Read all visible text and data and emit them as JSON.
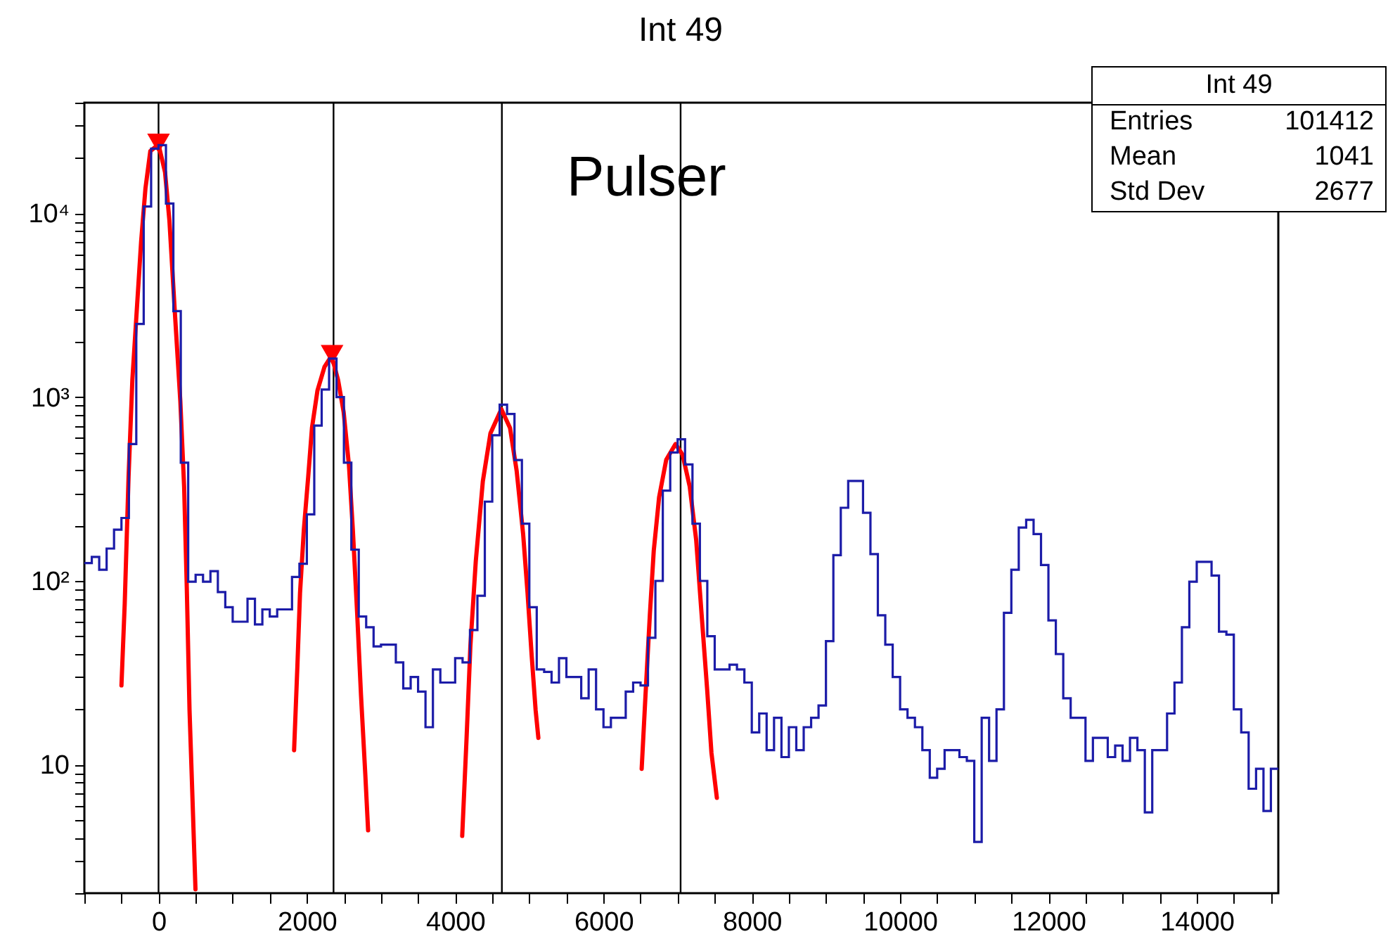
{
  "chart_data": {
    "type": "histogram",
    "title": "Int 49",
    "xlim": [
      -1000,
      15100
    ],
    "ylim": [
      2,
      40000
    ],
    "log": "y",
    "xticks": [
      {
        "value": -1000,
        "label": null
      },
      {
        "value": -500,
        "label": null
      },
      0,
      {
        "value": 500,
        "label": null
      },
      {
        "value": 1000,
        "label": null
      },
      {
        "value": 1500,
        "label": null
      },
      2000,
      {
        "value": 2500,
        "label": null
      },
      {
        "value": 3000,
        "label": null
      },
      {
        "value": 3500,
        "label": null
      },
      4000,
      {
        "value": 4500,
        "label": null
      },
      {
        "value": 5000,
        "label": null
      },
      {
        "value": 5500,
        "label": null
      },
      6000,
      {
        "value": 6500,
        "label": null
      },
      {
        "value": 7000,
        "label": null
      },
      {
        "value": 7500,
        "label": null
      },
      8000,
      {
        "value": 8500,
        "label": null
      },
      {
        "value": 9000,
        "label": null
      },
      {
        "value": 9500,
        "label": null
      },
      10000,
      {
        "value": 10500,
        "label": null
      },
      {
        "value": 11000,
        "label": null
      },
      {
        "value": 11500,
        "label": null
      },
      12000,
      {
        "value": 12500,
        "label": null
      },
      {
        "value": 13000,
        "label": null
      },
      {
        "value": 13500,
        "label": null
      },
      14000,
      {
        "value": 14500,
        "label": null
      },
      {
        "value": 15000,
        "label": null
      }
    ],
    "yticks": [
      {
        "value": 2,
        "label": null
      },
      {
        "value": 3,
        "label": null
      },
      {
        "value": 4,
        "label": null
      },
      {
        "value": 5,
        "label": null
      },
      {
        "value": 6,
        "label": null
      },
      {
        "value": 7,
        "label": null
      },
      {
        "value": 8,
        "label": null
      },
      {
        "value": 9,
        "label": null
      },
      10,
      {
        "value": 20,
        "label": null
      },
      {
        "value": 30,
        "label": null
      },
      {
        "value": 40,
        "label": null
      },
      {
        "value": 50,
        "label": null
      },
      {
        "value": 60,
        "label": null
      },
      {
        "value": 70,
        "label": null
      },
      {
        "value": 80,
        "label": null
      },
      {
        "value": 90,
        "label": null
      },
      {
        "value": 100,
        "label": "10²"
      },
      {
        "value": 200,
        "label": null
      },
      {
        "value": 300,
        "label": null
      },
      {
        "value": 400,
        "label": null
      },
      {
        "value": 500,
        "label": null
      },
      {
        "value": 600,
        "label": null
      },
      {
        "value": 700,
        "label": null
      },
      {
        "value": 800,
        "label": null
      },
      {
        "value": 900,
        "label": null
      },
      {
        "value": 1000,
        "label": "10³"
      },
      {
        "value": 2000,
        "label": null
      },
      {
        "value": 3000,
        "label": null
      },
      {
        "value": 4000,
        "label": null
      },
      {
        "value": 5000,
        "label": null
      },
      {
        "value": 6000,
        "label": null
      },
      {
        "value": 7000,
        "label": null
      },
      {
        "value": 8000,
        "label": null
      },
      {
        "value": 9000,
        "label": null
      },
      {
        "value": 10000,
        "label": "10⁴"
      },
      {
        "value": 20000,
        "label": null
      },
      {
        "value": 30000,
        "label": null
      },
      {
        "value": 40000,
        "label": null
      }
    ],
    "bins": [
      -1000,
      -900,
      -800,
      -700,
      -600,
      -500,
      -400,
      -300,
      -200,
      -100,
      0,
      100,
      200,
      300,
      400,
      500,
      600,
      700,
      800,
      900,
      1000,
      1100,
      1200,
      1300,
      1400,
      1500,
      1600,
      1700,
      1800,
      1900,
      2000,
      2100,
      2200,
      2300,
      2400,
      2500,
      2600,
      2700,
      2800,
      2900,
      3000,
      3100,
      3200,
      3300,
      3400,
      3500,
      3600,
      3700,
      3800,
      3900,
      4000,
      4100,
      4200,
      4300,
      4400,
      4500,
      4600,
      4700,
      4800,
      4900,
      5000,
      5100,
      5200,
      5300,
      5400,
      5500,
      5600,
      5700,
      5800,
      5900,
      6000,
      6100,
      6200,
      6300,
      6400,
      6500,
      6600,
      6700,
      6800,
      6900,
      7000,
      7100,
      7200,
      7300,
      7400,
      7500,
      7600,
      7700,
      7800,
      7900,
      8000,
      8100,
      8200,
      8300,
      8400,
      8500,
      8600,
      8700,
      8800,
      8900,
      9000,
      9100,
      9200,
      9300,
      9400,
      9500,
      9600,
      9700,
      9800,
      9900,
      10000,
      10100,
      10200,
      10300,
      10400,
      10500,
      10600,
      10700,
      10800,
      10900,
      11000,
      11100,
      11200,
      11300,
      11400,
      11500,
      11600,
      11700,
      11800,
      11900,
      12000,
      12100,
      12200,
      12300,
      12400,
      12500,
      12600,
      12700,
      12800,
      12900,
      13000,
      13100,
      13200,
      13300,
      13400,
      13500,
      13600,
      13700,
      13800,
      13900,
      14000,
      14100,
      14200,
      14300,
      14400,
      14500,
      14600,
      14700,
      14800,
      14900,
      15000,
      15100
    ],
    "series": [
      {
        "type": "histogram",
        "color": "#1c1ca8",
        "values": [
          125,
          135,
          115,
          150,
          190,
          220,
          556,
          2500,
          10900,
          22500,
          23500,
          11300,
          2940,
          440,
          99,
          108,
          99,
          113,
          87,
          72,
          60,
          60,
          80,
          58,
          70,
          64,
          70,
          70,
          105,
          124,
          230,
          700,
          1100,
          1620,
          1000,
          440,
          148,
          64,
          56,
          44,
          45,
          45,
          36,
          26,
          30,
          25,
          16,
          33,
          28,
          28,
          38,
          36,
          54,
          83,
          270,
          620,
          910,
          810,
          455,
          205,
          72,
          33,
          32,
          28,
          38,
          30,
          30,
          23,
          33,
          20,
          16,
          18,
          18,
          25,
          28,
          27,
          49,
          100,
          310,
          500,
          590,
          430,
          205,
          100,
          50,
          33,
          33,
          35,
          33,
          28,
          15,
          19,
          12,
          18,
          11,
          16,
          12,
          16,
          18,
          21,
          47,
          138,
          250,
          350,
          350,
          235,
          140,
          65,
          45,
          30,
          20,
          18,
          16,
          12,
          8.5,
          9.5,
          12,
          12,
          11,
          10.5,
          3.8,
          18,
          10.5,
          20,
          67,
          115,
          195,
          215,
          180,
          122,
          61,
          40,
          23,
          18,
          18,
          10.5,
          14,
          14,
          11,
          12.7,
          10.5,
          14,
          12,
          5.5,
          12,
          12,
          19,
          28,
          56,
          99,
          127,
          127,
          107,
          53,
          51,
          20,
          15,
          7.4,
          9.5,
          5.6,
          9.5
        ]
      },
      {
        "type": "line",
        "color": "#ff0000",
        "x": [
          -500,
          -456,
          -404,
          -353,
          -294,
          -235,
          -176,
          -111,
          0,
          88,
          147,
          219,
          294,
          345,
          381,
          418,
          454,
          498
        ],
        "values": [
          27,
          75,
          370,
          1240,
          2940,
          7000,
          13700,
          21800,
          23700,
          16700,
          9100,
          2940,
          950,
          326,
          92,
          19.8,
          7.3,
          2.1
        ]
      },
      {
        "type": "line",
        "color": "#ff0000",
        "x": [
          1828,
          1872,
          1908,
          1960,
          2019,
          2069,
          2143,
          2238,
          2334,
          2421,
          2496,
          2568,
          2620,
          2679,
          2730,
          2788,
          2826
        ],
        "values": [
          12,
          34,
          86,
          191,
          372,
          680,
          1085,
          1460,
          1680,
          1240,
          830,
          425,
          191,
          66,
          24,
          8.9,
          4.4
        ]
      },
      {
        "type": "line",
        "color": "#ff0000",
        "x": [
          4095,
          4154,
          4205,
          4278,
          4373,
          4476,
          4623,
          4740,
          4829,
          4917,
          4976,
          5033,
          5085,
          5122
        ],
        "values": [
          4.1,
          14,
          44,
          128,
          348,
          636,
          860,
          680,
          398,
          179,
          86,
          38.6,
          19.8,
          14
        ]
      },
      {
        "type": "line",
        "color": "#ff0000",
        "x": [
          6515,
          6567,
          6626,
          6678,
          6750,
          6846,
          6972,
          7067,
          7163,
          7250,
          7323,
          7397,
          7456,
          7529
        ],
        "values": [
          9.5,
          24,
          66,
          146,
          285,
          456,
          556,
          486,
          326,
          167,
          66,
          26,
          11.6,
          6.6
        ]
      },
      {
        "type": "scatter",
        "color": "#ff0000",
        "marker": "triangle",
        "x": [
          0,
          2340
        ],
        "values": [
          24000,
          1700
        ]
      }
    ],
    "ref_lines": [
      {
        "axis": "x",
        "value": 0,
        "color": "#000000"
      },
      {
        "axis": "x",
        "value": 2360,
        "color": "#000000"
      },
      {
        "axis": "x",
        "value": 4630,
        "color": "#000000"
      },
      {
        "axis": "x",
        "value": 7040,
        "color": "#000000"
      }
    ],
    "annotations": [
      "Pulser",
      "Int 49",
      "Entries",
      "101412",
      "Mean",
      "1041",
      "Std Dev",
      "2677"
    ]
  }
}
